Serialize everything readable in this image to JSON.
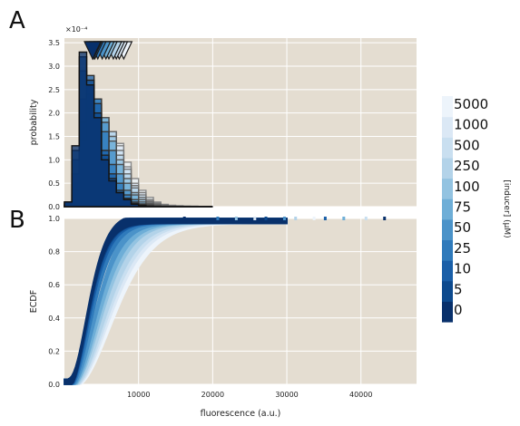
{
  "chart_data": [
    {
      "panel_label": "A",
      "type": "line",
      "style": "step histograms (filled, outlined), one per inducer concentration; triangles mark means",
      "ylabel": "probability",
      "y_exponent_label": "×10⁻⁴",
      "ylim": [
        0,
        3.6
      ],
      "y_ticks": [
        "0.0",
        "0.5",
        "1.0",
        "1.5",
        "2.0",
        "2.5",
        "3.0",
        "3.5"
      ],
      "xlim": [
        0,
        47500
      ],
      "bin_width": 1000,
      "grid": true,
      "background": "#e4ddd1",
      "series": [
        {
          "name": "0",
          "color": "#08306b",
          "mean": 3800,
          "values": [
            0.1,
            1.3,
            3.3,
            2.6,
            1.9,
            1.0,
            0.55,
            0.3,
            0.15,
            0.05,
            0.02,
            0,
            0,
            0,
            0,
            0,
            0,
            0,
            0,
            0
          ]
        },
        {
          "name": "5",
          "color": "#0d4a8e",
          "mean": 3900,
          "values": [
            0.1,
            1.2,
            3.2,
            2.7,
            2.0,
            1.1,
            0.6,
            0.3,
            0.15,
            0.06,
            0.02,
            0,
            0,
            0,
            0,
            0,
            0,
            0,
            0,
            0
          ]
        },
        {
          "name": "10",
          "color": "#1a5fa8",
          "mean": 4100,
          "values": [
            0.08,
            1.0,
            2.9,
            2.8,
            2.2,
            1.2,
            0.7,
            0.35,
            0.18,
            0.07,
            0.03,
            0.01,
            0,
            0,
            0,
            0,
            0,
            0,
            0,
            0
          ]
        },
        {
          "name": "25",
          "color": "#2f7abb",
          "mean": 4500,
          "values": [
            0.05,
            0.7,
            2.3,
            2.6,
            2.3,
            1.6,
            0.9,
            0.5,
            0.25,
            0.1,
            0.04,
            0.02,
            0,
            0,
            0,
            0,
            0,
            0,
            0,
            0
          ]
        },
        {
          "name": "50",
          "color": "#4b93c9",
          "mean": 5100,
          "values": [
            0.03,
            0.5,
            1.8,
            2.4,
            2.3,
            1.8,
            1.2,
            0.7,
            0.35,
            0.15,
            0.06,
            0.03,
            0.01,
            0,
            0,
            0,
            0,
            0,
            0,
            0
          ]
        },
        {
          "name": "75",
          "color": "#6eaed7",
          "mean": 5600,
          "values": [
            0.02,
            0.35,
            1.4,
            2.1,
            2.2,
            1.9,
            1.4,
            0.9,
            0.5,
            0.25,
            0.1,
            0.05,
            0.02,
            0.01,
            0,
            0,
            0,
            0,
            0,
            0
          ]
        },
        {
          "name": "100",
          "color": "#93c3e1",
          "mean": 6000,
          "values": [
            0.02,
            0.25,
            1.1,
            1.9,
            2.1,
            1.9,
            1.5,
            1.0,
            0.6,
            0.3,
            0.15,
            0.07,
            0.03,
            0.01,
            0,
            0,
            0,
            0,
            0,
            0
          ]
        },
        {
          "name": "250",
          "color": "#b3d3e9",
          "mean": 6600,
          "values": [
            0.01,
            0.15,
            0.8,
            1.6,
            1.9,
            1.8,
            1.6,
            1.1,
            0.7,
            0.4,
            0.2,
            0.1,
            0.05,
            0.02,
            0.01,
            0,
            0,
            0,
            0,
            0
          ]
        },
        {
          "name": "500",
          "color": "#c9dff0",
          "mean": 7000,
          "values": [
            0.01,
            0.1,
            0.7,
            1.5,
            1.8,
            1.8,
            1.6,
            1.2,
            0.8,
            0.45,
            0.25,
            0.12,
            0.06,
            0.03,
            0.01,
            0.01,
            0,
            0,
            0,
            0
          ]
        },
        {
          "name": "1000",
          "color": "#dbe8f5",
          "mean": 7400,
          "values": [
            0.01,
            0.08,
            0.6,
            1.3,
            1.7,
            1.8,
            1.6,
            1.3,
            0.85,
            0.5,
            0.3,
            0.15,
            0.08,
            0.04,
            0.02,
            0.01,
            0.01,
            0,
            0,
            0
          ]
        },
        {
          "name": "5000",
          "color": "#edf4fb",
          "mean": 8000,
          "values": [
            0.01,
            0.06,
            0.5,
            1.2,
            1.6,
            1.7,
            1.6,
            1.35,
            0.95,
            0.6,
            0.35,
            0.2,
            0.1,
            0.05,
            0.03,
            0.02,
            0.01,
            0.01,
            0,
            0
          ]
        }
      ]
    },
    {
      "panel_label": "B",
      "type": "line",
      "style": "ECDF confidence bands, one per inducer concentration",
      "xlabel": "fluorescence (a.u.)",
      "ylabel": "ECDF",
      "xlim": [
        0,
        47500
      ],
      "ylim": [
        0,
        1
      ],
      "x_ticks": [
        "10000",
        "20000",
        "30000",
        "40000"
      ],
      "y_ticks": [
        "0.0",
        "0.2",
        "0.4",
        "0.6",
        "0.8",
        "1.0"
      ],
      "grid": true,
      "background": "#e4ddd1",
      "series_source": "same concentrations as panel A (median fluorescence ≈ mean)"
    }
  ],
  "colorbar": {
    "label": "[inducer] (μM)",
    "ticks": [
      "5000",
      "1000",
      "500",
      "250",
      "100",
      "75",
      "50",
      "25",
      "10",
      "5",
      "0"
    ]
  },
  "colors": {
    "axes_background": "#e4ddd1",
    "grid": "#ffffff",
    "outline": "#1a1a1a"
  }
}
